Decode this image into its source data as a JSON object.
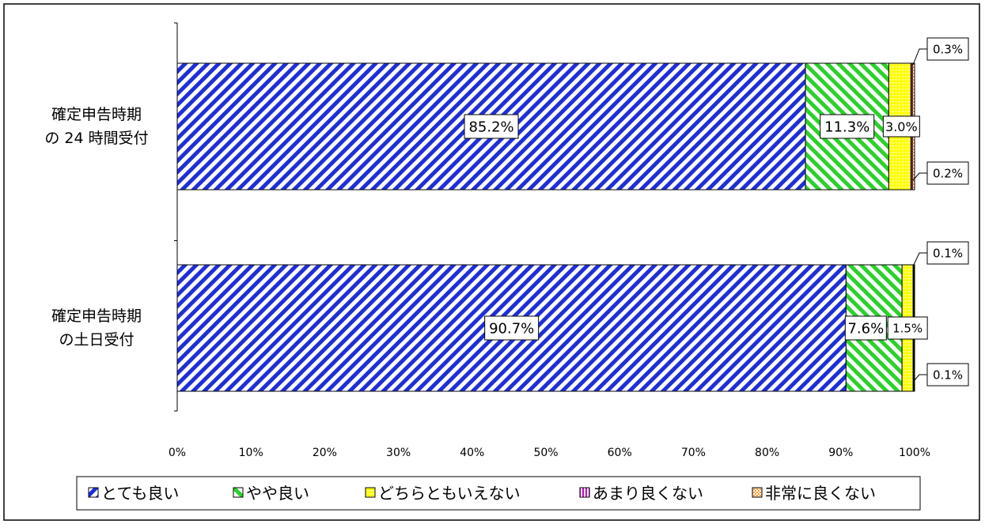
{
  "chart_data": {
    "type": "bar",
    "orientation": "horizontal",
    "stacked": "percent",
    "categories": [
      "確定申告時期\nの 24 時間受付",
      "確定申告時期\nの土日受付"
    ],
    "series": [
      {
        "name": "とても良い",
        "values": [
          85.2,
          90.7
        ],
        "labels": [
          "85.2%",
          "90.7%"
        ],
        "color": "#1f2fd6",
        "pattern": "diagonal-stripes"
      },
      {
        "name": "やや良い",
        "values": [
          11.3,
          7.6
        ],
        "labels": [
          "11.3%",
          "7.6%"
        ],
        "color": "#2bd12b",
        "pattern": "diagonal-stripes-reverse"
      },
      {
        "name": "どちらともいえない",
        "values": [
          3.0,
          1.5
        ],
        "labels": [
          "3.0%",
          "1.5%"
        ],
        "color": "#ffff00",
        "pattern": "dots"
      },
      {
        "name": "あまり良くない",
        "values": [
          0.2,
          0.1
        ],
        "labels": [
          "0.2%",
          "0.1%"
        ],
        "color": "#cc00cc",
        "pattern": "vertical-stripes"
      },
      {
        "name": "非常に良くない",
        "values": [
          0.3,
          0.1
        ],
        "labels": [
          "0.3%",
          "0.1%"
        ],
        "color": "#ff9933",
        "pattern": "checker"
      }
    ],
    "xlim": [
      0,
      100
    ],
    "x_ticks": [
      "0%",
      "10%",
      "20%",
      "30%",
      "40%",
      "50%",
      "60%",
      "70%",
      "80%",
      "90%",
      "100%"
    ],
    "grid": false,
    "legend_position": "bottom",
    "title": "",
    "xlabel": "",
    "ylabel": ""
  }
}
